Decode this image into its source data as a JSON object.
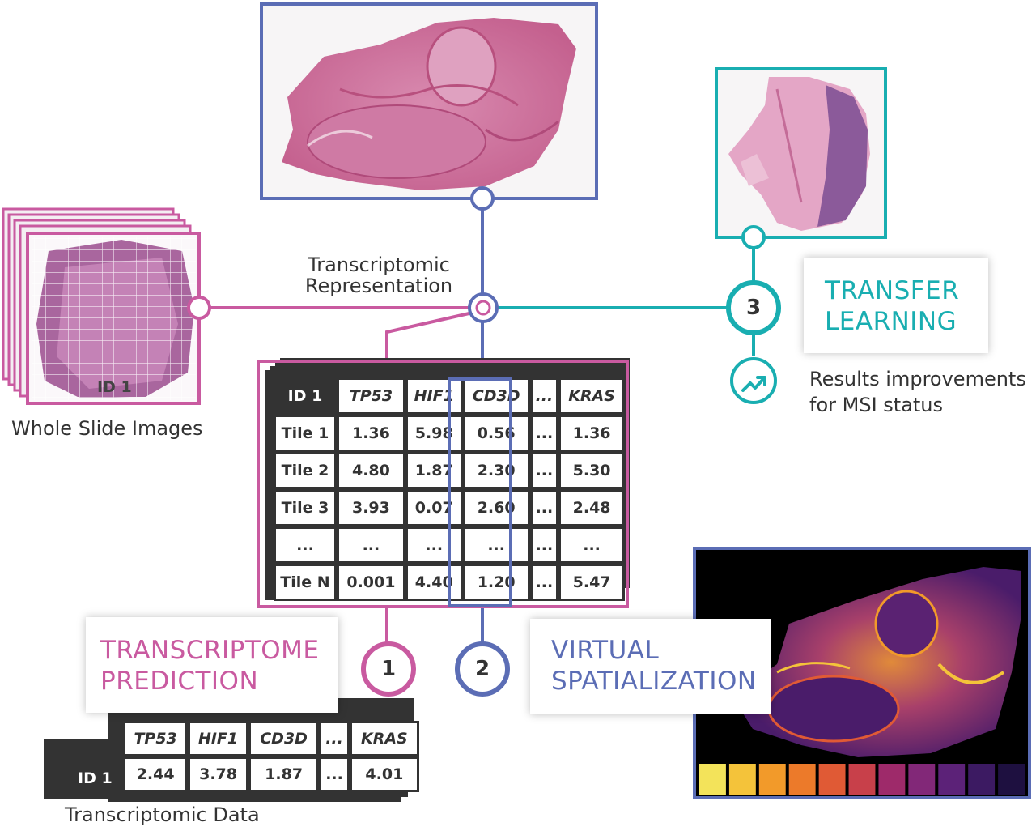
{
  "colors": {
    "pink": "#c95aa0",
    "blue": "#5b6db5",
    "teal": "#19aeb1",
    "dark": "#333333"
  },
  "labels": {
    "transcriptomic_representation": [
      "Transcriptomic",
      "Representation"
    ],
    "whole_slide_images": "Whole Slide Images",
    "wsi_id": "ID 1",
    "transcriptomic_data": "Transcriptomic Data",
    "results_improvements": [
      "Results improvements",
      "for MSI status"
    ]
  },
  "callouts": {
    "transcriptome_prediction": [
      "TRANSCRIPTOME",
      "PREDICTION"
    ],
    "virtual_spatialization": [
      "VIRTUAL",
      "SPATIALIZATION"
    ],
    "transfer_learning": [
      "TRANSFER",
      "LEARNING"
    ]
  },
  "steps": {
    "one": "1",
    "two": "2",
    "three": "3"
  },
  "icons": {
    "trend": "trend-up-arrow-icon"
  },
  "tile_table": {
    "corner": "ID 1",
    "headers": [
      "TP53",
      "HIF1",
      "CD3D",
      "...",
      "KRAS"
    ],
    "rows": [
      [
        "Tile 1",
        "1.36",
        "5.98",
        "0.56",
        "...",
        "1.36"
      ],
      [
        "Tile 2",
        "4.80",
        "1.87",
        "2.30",
        "...",
        "5.30"
      ],
      [
        "Tile 3",
        "3.93",
        "0.07",
        "2.60",
        "...",
        "2.48"
      ],
      [
        "...",
        "...",
        "...",
        "...",
        "...",
        "..."
      ],
      [
        "Tile N",
        "0.001",
        "4.40",
        "1.20",
        "...",
        "5.47"
      ]
    ]
  },
  "data_table": {
    "headers": [
      "TP53",
      "HIF1",
      "CD3D",
      "...",
      "KRAS"
    ],
    "row_label": "ID 1",
    "values": [
      "2.44",
      "3.78",
      "1.87",
      "...",
      "4.01"
    ]
  },
  "heatmap_scale": [
    "#f3e35a",
    "#f4c33a",
    "#f29a2a",
    "#ec7a2a",
    "#e05a35",
    "#c8404a",
    "#9e2a6a",
    "#822878",
    "#5c2278",
    "#3c1a62",
    "#1e1040"
  ]
}
